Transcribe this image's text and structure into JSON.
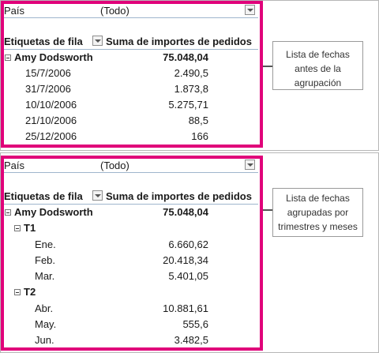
{
  "top_pivot": {
    "filter_label": "País",
    "filter_value": "(Todo)",
    "row_labels_header": "Etiquetas de fila",
    "sum_header": "Suma de importes de pedidos",
    "group": {
      "name": "Amy Dodsworth",
      "total": "75.048,04"
    },
    "rows": [
      {
        "date": "15/7/2006",
        "value": "2.490,5"
      },
      {
        "date": "31/7/2006",
        "value": "1.873,8"
      },
      {
        "date": "10/10/2006",
        "value": "5.275,71"
      },
      {
        "date": "21/10/2006",
        "value": "88,5"
      },
      {
        "date": "25/12/2006",
        "value": "166"
      }
    ]
  },
  "bottom_pivot": {
    "filter_label": "País",
    "filter_value": "(Todo)",
    "row_labels_header": "Etiquetas de fila",
    "sum_header": "Suma de importes de pedidos",
    "group": {
      "name": "Amy Dodsworth",
      "total": "75.048,04"
    },
    "quarters": [
      {
        "name": "T1",
        "months": [
          {
            "month": "Ene.",
            "value": "6.660,62"
          },
          {
            "month": "Feb.",
            "value": "20.418,34"
          },
          {
            "month": "Mar.",
            "value": "5.401,05"
          }
        ]
      },
      {
        "name": "T2",
        "months": [
          {
            "month": "Abr.",
            "value": "10.881,61"
          },
          {
            "month": "May.",
            "value": "555,6"
          },
          {
            "month": "Jun.",
            "value": "3.482,5"
          }
        ]
      }
    ]
  },
  "callouts": {
    "top": [
      "Lista de fechas",
      "antes de la",
      "agrupación"
    ],
    "bottom": [
      "Lista de fechas",
      "agrupadas por",
      "trimestres y meses"
    ]
  },
  "colors": {
    "highlight": "#e0007a",
    "header_rule": "#9fb6cd"
  }
}
